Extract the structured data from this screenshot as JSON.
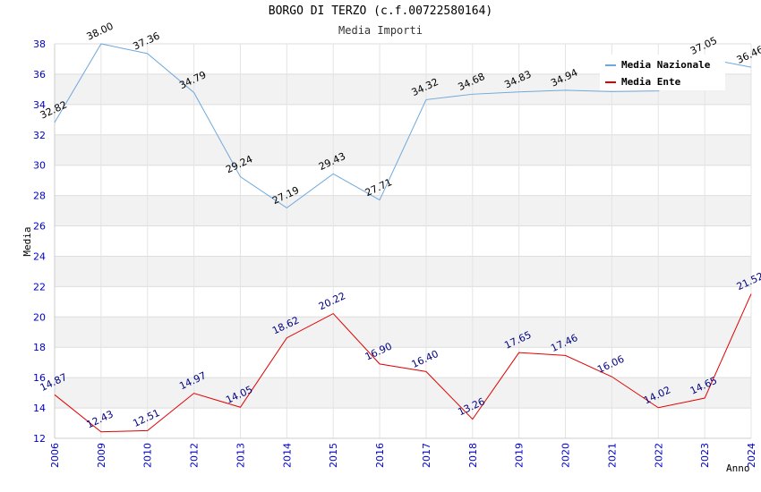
{
  "title": "BORGO DI TERZO (c.f.00722580164)",
  "subtitle": "Media Importi",
  "chart_data": {
    "type": "line",
    "xlabel": "Anno",
    "ylabel": "Media",
    "ylim": [
      12,
      38
    ],
    "yticks": [
      12,
      14,
      16,
      18,
      20,
      22,
      24,
      26,
      28,
      30,
      32,
      34,
      36,
      38
    ],
    "categories": [
      "2006",
      "2009",
      "2010",
      "2012",
      "2013",
      "2014",
      "2015",
      "2016",
      "2017",
      "2018",
      "2019",
      "2020",
      "2021",
      "2022",
      "2023",
      "2024"
    ],
    "grid": true,
    "legend_position": "top-right",
    "series": [
      {
        "name": "Media Nazionale",
        "color": "#6fa8dc",
        "values": [
          32.82,
          38.0,
          37.36,
          34.79,
          29.24,
          27.19,
          29.43,
          27.71,
          34.32,
          34.68,
          34.83,
          34.94,
          34.85,
          34.9,
          37.05,
          36.46
        ],
        "labels": [
          "32.82",
          "38.00",
          "37.36",
          "34.79",
          "29.24",
          "27.19",
          "29.43",
          "27.71",
          "34.32",
          "34.68",
          "34.83",
          "34.94",
          "",
          "",
          "37.05",
          "36.46"
        ]
      },
      {
        "name": "Media Ente",
        "color": "#e00000",
        "values": [
          14.87,
          12.43,
          12.51,
          14.97,
          14.05,
          18.62,
          20.22,
          16.9,
          16.4,
          13.26,
          17.65,
          17.46,
          16.06,
          14.02,
          14.65,
          21.52
        ],
        "labels": [
          "14.87",
          "12.43",
          "12.51",
          "14.97",
          "14.05",
          "18.62",
          "20.22",
          "16.90",
          "16.40",
          "13.26",
          "17.65",
          "17.46",
          "16.06",
          "14.02",
          "14.65",
          "21.52"
        ]
      }
    ]
  }
}
